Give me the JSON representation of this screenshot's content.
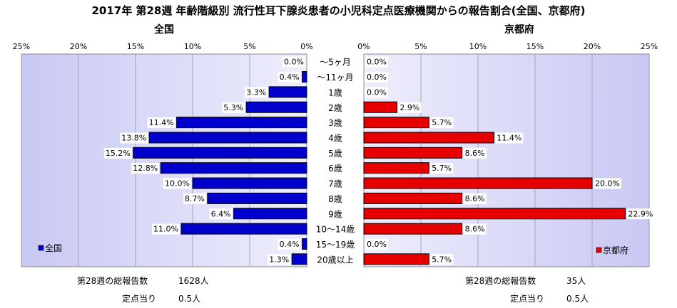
{
  "title": "2017年 第28週 年齢階級別 流行性耳下腺炎患者の小児科定点医療機関からの報告割合(全国、京都府)",
  "chart_data": [
    {
      "type": "bar",
      "orientation": "horizontal",
      "direction": "right-to-left",
      "panel_title": "全国",
      "categories": [
        "～5ヶ月",
        "～11ヶ月",
        "1歳",
        "2歳",
        "3歳",
        "4歳",
        "5歳",
        "6歳",
        "7歳",
        "8歳",
        "9歳",
        "10～14歳",
        "15～19歳",
        "20歳以上"
      ],
      "series": [
        {
          "name": "全国",
          "color": "#0000cc",
          "values": [
            0.0,
            0.4,
            3.3,
            5.3,
            11.4,
            13.8,
            15.2,
            12.8,
            10.0,
            8.7,
            6.4,
            11.0,
            0.4,
            1.3
          ]
        }
      ],
      "value_labels": [
        "0.0%",
        "0.4%",
        "3.3%",
        "5.3%",
        "11.4%",
        "13.8%",
        "15.2%",
        "12.8%",
        "10.0%",
        "8.7%",
        "6.4%",
        "11.0%",
        "0.4%",
        "1.3%"
      ],
      "xlim": [
        0,
        25
      ],
      "xticks": [
        "25%",
        "20%",
        "15%",
        "10%",
        "5%",
        "0%"
      ],
      "legend_label": "全国",
      "legend_position": "bottom-left",
      "grid": true
    },
    {
      "type": "bar",
      "orientation": "horizontal",
      "direction": "left-to-right",
      "panel_title": "京都府",
      "categories": [
        "～5ヶ月",
        "～11ヶ月",
        "1歳",
        "2歳",
        "3歳",
        "4歳",
        "5歳",
        "6歳",
        "7歳",
        "8歳",
        "9歳",
        "10～14歳",
        "15～19歳",
        "20歳以上"
      ],
      "series": [
        {
          "name": "京都府",
          "color": "#e60000",
          "values": [
            0.0,
            0.0,
            0.0,
            2.9,
            5.7,
            11.4,
            8.6,
            5.7,
            20.0,
            8.6,
            22.9,
            8.6,
            0.0,
            5.7
          ]
        }
      ],
      "value_labels": [
        "0.0%",
        "0.0%",
        "0.0%",
        "2.9%",
        "5.7%",
        "11.4%",
        "8.6%",
        "5.7%",
        "20.0%",
        "8.6%",
        "22.9%",
        "8.6%",
        "0.0%",
        "5.7%"
      ],
      "xlim": [
        0,
        25
      ],
      "xticks": [
        "0%",
        "5%",
        "10%",
        "15%",
        "20%",
        "25%"
      ],
      "legend_label": "京都府",
      "legend_position": "bottom-right",
      "grid": true
    }
  ],
  "footer": {
    "left": {
      "total_label": "第28週の総報告数",
      "total_value": "1628人",
      "per_label": "定点当り",
      "per_value": "0.5人"
    },
    "right": {
      "total_label": "第28週の総報告数",
      "total_value": "35人",
      "per_label": "定点当り",
      "per_value": "0.5人"
    }
  }
}
